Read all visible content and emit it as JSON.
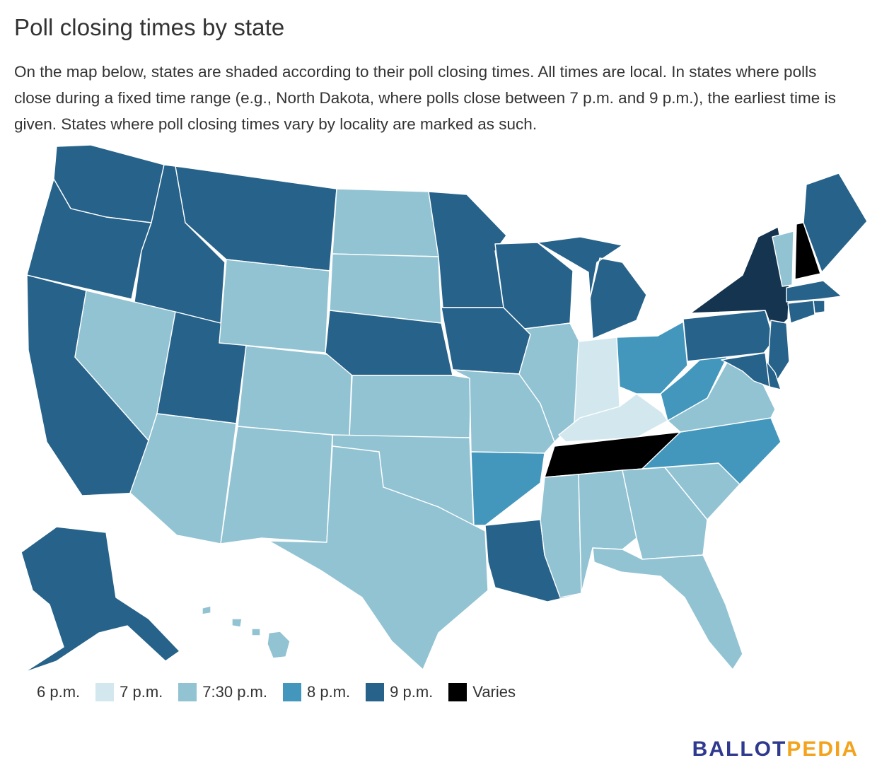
{
  "title": "Poll closing times by state",
  "description": "On the map below, states are shaded according to their poll closing times. All times are local. In states where polls close during a fixed time range (e.g., North Dakota, where polls close between 7 p.m. and 9 p.m.), the earliest time is given. States where poll closing times vary by locality are marked as such.",
  "legend": [
    {
      "label": "6 p.m.",
      "color": "#ffffff"
    },
    {
      "label": "7 p.m.",
      "color": "#d3e8ee"
    },
    {
      "label": "7:30 p.m.",
      "color": "#92c3d3"
    },
    {
      "label": "8 p.m.",
      "color": "#4397bd"
    },
    {
      "label": "9 p.m.",
      "color": "#266289"
    },
    {
      "label": "Varies",
      "color": "#000000"
    }
  ],
  "logo": {
    "part1": "BALLOT",
    "part2": "PEDIA"
  },
  "category_colors": {
    "7pm": "#d3e8ee",
    "730pm": "#92c3d3",
    "8pm": "#4397bd",
    "9pm": "#266289",
    "9pm_dark": "#15344f",
    "varies": "#000000"
  },
  "states": [
    {
      "name": "Washington",
      "category": "9pm"
    },
    {
      "name": "Oregon",
      "category": "9pm"
    },
    {
      "name": "California",
      "category": "9pm"
    },
    {
      "name": "Idaho",
      "category": "9pm"
    },
    {
      "name": "Montana",
      "category": "9pm"
    },
    {
      "name": "Nevada",
      "category": "730pm"
    },
    {
      "name": "Utah",
      "category": "9pm"
    },
    {
      "name": "Arizona",
      "category": "730pm"
    },
    {
      "name": "Wyoming",
      "category": "730pm"
    },
    {
      "name": "Colorado",
      "category": "730pm"
    },
    {
      "name": "New Mexico",
      "category": "730pm"
    },
    {
      "name": "North Dakota",
      "category": "730pm"
    },
    {
      "name": "South Dakota",
      "category": "730pm"
    },
    {
      "name": "Nebraska",
      "category": "9pm"
    },
    {
      "name": "Kansas",
      "category": "730pm"
    },
    {
      "name": "Oklahoma",
      "category": "730pm"
    },
    {
      "name": "Texas",
      "category": "730pm"
    },
    {
      "name": "Minnesota",
      "category": "9pm"
    },
    {
      "name": "Iowa",
      "category": "9pm"
    },
    {
      "name": "Missouri",
      "category": "730pm"
    },
    {
      "name": "Arkansas",
      "category": "8pm"
    },
    {
      "name": "Louisiana",
      "category": "9pm"
    },
    {
      "name": "Wisconsin",
      "category": "9pm"
    },
    {
      "name": "Illinois",
      "category": "730pm"
    },
    {
      "name": "Michigan",
      "category": "9pm"
    },
    {
      "name": "Indiana",
      "category": "7pm"
    },
    {
      "name": "Kentucky",
      "category": "7pm"
    },
    {
      "name": "Tennessee",
      "category": "varies"
    },
    {
      "name": "Mississippi",
      "category": "730pm"
    },
    {
      "name": "Alabama",
      "category": "730pm"
    },
    {
      "name": "Georgia",
      "category": "730pm"
    },
    {
      "name": "Florida",
      "category": "730pm"
    },
    {
      "name": "South Carolina",
      "category": "730pm"
    },
    {
      "name": "North Carolina",
      "category": "8pm"
    },
    {
      "name": "Virginia",
      "category": "730pm"
    },
    {
      "name": "West Virginia",
      "category": "8pm"
    },
    {
      "name": "Ohio",
      "category": "8pm"
    },
    {
      "name": "Pennsylvania",
      "category": "9pm"
    },
    {
      "name": "New York",
      "category": "9pm_dark"
    },
    {
      "name": "Vermont",
      "category": "730pm"
    },
    {
      "name": "New Hampshire",
      "category": "varies"
    },
    {
      "name": "Maine",
      "category": "9pm"
    },
    {
      "name": "Massachusetts",
      "category": "9pm"
    },
    {
      "name": "Rhode Island",
      "category": "9pm"
    },
    {
      "name": "Connecticut",
      "category": "9pm"
    },
    {
      "name": "New Jersey",
      "category": "9pm"
    },
    {
      "name": "Delaware",
      "category": "9pm"
    },
    {
      "name": "Maryland",
      "category": "9pm"
    },
    {
      "name": "Alaska",
      "category": "9pm"
    },
    {
      "name": "Hawaii",
      "category": "730pm"
    }
  ]
}
